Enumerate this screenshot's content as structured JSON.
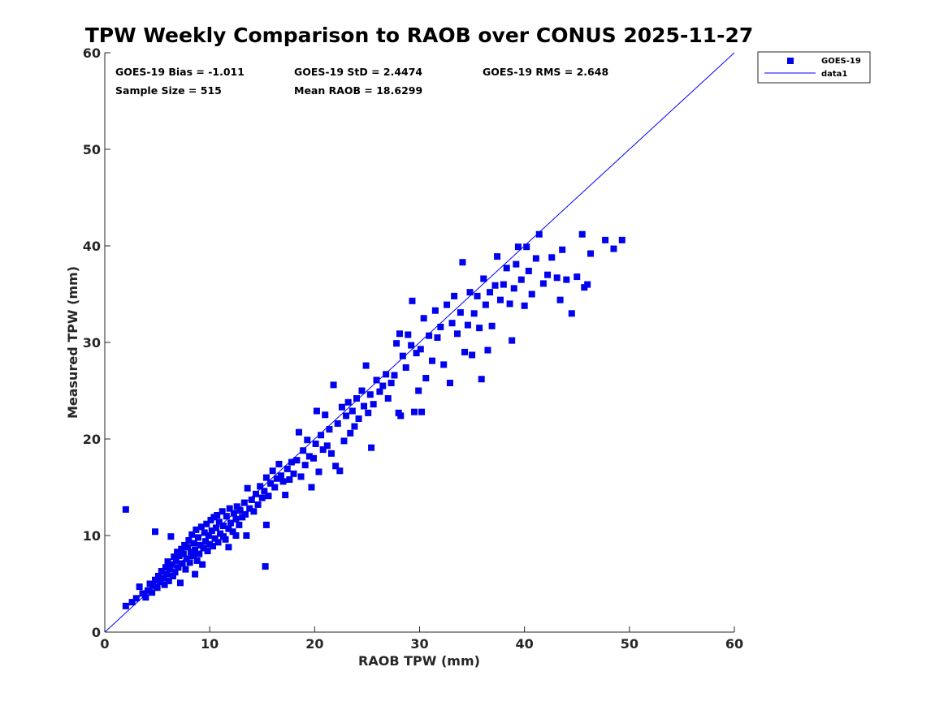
{
  "colors": {
    "series": "#0000ee",
    "line": "#0000ff",
    "axis": "#262626",
    "background": "#ffffff"
  },
  "chart_data": {
    "type": "scatter",
    "title": "TPW Weekly Comparison to RAOB over CONUS 2025-11-27",
    "xlabel": "RAOB TPW (mm)",
    "ylabel": "Measured TPW (mm)",
    "xlim": [
      0,
      60
    ],
    "ylim": [
      0,
      60
    ],
    "xticks": [
      0,
      10,
      20,
      30,
      40,
      50,
      60
    ],
    "yticks": [
      0,
      10,
      20,
      30,
      40,
      50,
      60
    ],
    "grid": false,
    "legend_position": "outside-top-right",
    "stats": {
      "bias": "GOES-19 Bias = -1.011",
      "std": "GOES-19 StD = 2.4474",
      "rms": "GOES-19 RMS = 2.648",
      "sample_size": "Sample Size = 515",
      "mean_raob": "Mean RAOB = 18.6299"
    },
    "series": [
      {
        "name": "GOES-19",
        "kind": "scatter",
        "points": [
          [
            2.0,
            12.7
          ],
          [
            4.8,
            10.4
          ],
          [
            6.3,
            9.9
          ],
          [
            15.3,
            6.8
          ],
          [
            8.6,
            6.0
          ],
          [
            11.3,
            9.9
          ],
          [
            12.5,
            10.0
          ],
          [
            13.5,
            10.0
          ],
          [
            15.4,
            11.1
          ],
          [
            11.8,
            8.8
          ],
          [
            2.0,
            2.7
          ],
          [
            2.6,
            3.1
          ],
          [
            3.0,
            3.5
          ],
          [
            3.3,
            4.7
          ],
          [
            3.6,
            4.0
          ],
          [
            3.9,
            3.6
          ],
          [
            4.1,
            4.3
          ],
          [
            4.3,
            5.0
          ],
          [
            4.5,
            4.1
          ],
          [
            4.6,
            4.8
          ],
          [
            4.8,
            5.4
          ],
          [
            5.0,
            4.6
          ],
          [
            5.1,
            5.8
          ],
          [
            5.3,
            5.2
          ],
          [
            5.4,
            6.3
          ],
          [
            5.6,
            5.6
          ],
          [
            5.7,
            4.9
          ],
          [
            5.8,
            6.7
          ],
          [
            5.9,
            6.0
          ],
          [
            6.0,
            7.3
          ],
          [
            6.1,
            5.3
          ],
          [
            6.2,
            6.5
          ],
          [
            6.4,
            7.0
          ],
          [
            6.5,
            5.8
          ],
          [
            6.6,
            7.8
          ],
          [
            6.7,
            6.2
          ],
          [
            6.8,
            7.4
          ],
          [
            6.9,
            8.3
          ],
          [
            7.0,
            6.7
          ],
          [
            7.1,
            7.9
          ],
          [
            7.2,
            5.1
          ],
          [
            7.3,
            8.6
          ],
          [
            7.4,
            7.1
          ],
          [
            7.5,
            8.1
          ],
          [
            7.6,
            9.0
          ],
          [
            7.7,
            6.5
          ],
          [
            7.8,
            7.6
          ],
          [
            7.9,
            8.8
          ],
          [
            8.0,
            9.5
          ],
          [
            8.1,
            7.2
          ],
          [
            8.2,
            8.3
          ],
          [
            8.3,
            10.1
          ],
          [
            8.4,
            7.9
          ],
          [
            8.5,
            9.2
          ],
          [
            8.6,
            8.5
          ],
          [
            8.7,
            10.6
          ],
          [
            8.8,
            7.4
          ],
          [
            8.9,
            9.8
          ],
          [
            9.0,
            8.1
          ],
          [
            9.1,
            9.0
          ],
          [
            9.2,
            10.9
          ],
          [
            9.3,
            7.0
          ],
          [
            9.4,
            8.7
          ],
          [
            9.5,
            10.3
          ],
          [
            9.6,
            9.4
          ],
          [
            9.7,
            11.2
          ],
          [
            9.8,
            8.4
          ],
          [
            9.9,
            10.0
          ],
          [
            10.0,
            9.1
          ],
          [
            10.1,
            11.6
          ],
          [
            10.2,
            10.5
          ],
          [
            10.3,
            8.9
          ],
          [
            10.4,
            11.9
          ],
          [
            10.5,
            9.7
          ],
          [
            10.6,
            10.8
          ],
          [
            10.7,
            12.1
          ],
          [
            10.8,
            9.3
          ],
          [
            10.9,
            11.4
          ],
          [
            11.0,
            10.2
          ],
          [
            11.2,
            12.5
          ],
          [
            11.3,
            11.0
          ],
          [
            11.5,
            9.6
          ],
          [
            11.6,
            12.0
          ],
          [
            11.8,
            10.7
          ],
          [
            11.9,
            12.8
          ],
          [
            12.0,
            11.3
          ],
          [
            12.2,
            10.4
          ],
          [
            12.3,
            12.3
          ],
          [
            12.5,
            11.7
          ],
          [
            12.6,
            13.0
          ],
          [
            12.8,
            11.1
          ],
          [
            12.9,
            12.6
          ],
          [
            13.1,
            11.9
          ],
          [
            13.3,
            13.4
          ],
          [
            13.4,
            12.2
          ],
          [
            13.6,
            14.9
          ],
          [
            13.8,
            12.8
          ],
          [
            14.0,
            13.7
          ],
          [
            14.2,
            12.5
          ],
          [
            14.4,
            14.3
          ],
          [
            14.6,
            13.2
          ],
          [
            14.8,
            15.1
          ],
          [
            15.0,
            13.9
          ],
          [
            15.2,
            14.6
          ],
          [
            15.4,
            16.0
          ],
          [
            15.6,
            14.1
          ],
          [
            15.8,
            15.4
          ],
          [
            16.0,
            16.7
          ],
          [
            16.2,
            15.0
          ],
          [
            16.4,
            15.9
          ],
          [
            16.6,
            17.4
          ],
          [
            16.8,
            16.2
          ],
          [
            17.0,
            15.6
          ],
          [
            17.2,
            14.2
          ],
          [
            17.4,
            16.9
          ],
          [
            17.6,
            15.8
          ],
          [
            17.8,
            17.6
          ],
          [
            18.0,
            16.4
          ],
          [
            18.3,
            17.8
          ],
          [
            18.5,
            20.7
          ],
          [
            18.7,
            16.1
          ],
          [
            18.9,
            18.8
          ],
          [
            19.1,
            17.3
          ],
          [
            19.3,
            19.9
          ],
          [
            19.5,
            18.2
          ],
          [
            19.7,
            15.0
          ],
          [
            19.9,
            18.0
          ],
          [
            20.1,
            19.5
          ],
          [
            20.2,
            22.9
          ],
          [
            20.4,
            16.6
          ],
          [
            20.6,
            20.4
          ],
          [
            20.8,
            18.9
          ],
          [
            21.0,
            22.5
          ],
          [
            21.2,
            19.3
          ],
          [
            21.4,
            21.0
          ],
          [
            21.6,
            18.5
          ],
          [
            21.8,
            25.6
          ],
          [
            22.0,
            17.2
          ],
          [
            22.2,
            21.6
          ],
          [
            22.4,
            16.7
          ],
          [
            22.6,
            23.3
          ],
          [
            22.8,
            19.8
          ],
          [
            23.0,
            22.4
          ],
          [
            23.2,
            23.8
          ],
          [
            23.4,
            20.6
          ],
          [
            23.6,
            22.9
          ],
          [
            23.8,
            21.3
          ],
          [
            24.0,
            24.2
          ],
          [
            24.2,
            22.1
          ],
          [
            24.5,
            25.0
          ],
          [
            24.7,
            23.4
          ],
          [
            24.9,
            27.6
          ],
          [
            25.1,
            22.7
          ],
          [
            25.3,
            24.6
          ],
          [
            25.4,
            19.1
          ],
          [
            25.6,
            23.6
          ],
          [
            25.9,
            26.1
          ],
          [
            26.2,
            24.9
          ],
          [
            26.5,
            25.5
          ],
          [
            26.8,
            26.7
          ],
          [
            27.0,
            24.2
          ],
          [
            27.3,
            25.8
          ],
          [
            27.6,
            26.6
          ],
          [
            27.8,
            29.9
          ],
          [
            28.0,
            22.7
          ],
          [
            28.1,
            30.9
          ],
          [
            28.2,
            22.4
          ],
          [
            28.4,
            28.6
          ],
          [
            28.7,
            27.4
          ],
          [
            28.9,
            30.8
          ],
          [
            29.2,
            29.7
          ],
          [
            29.3,
            34.3
          ],
          [
            29.5,
            22.8
          ],
          [
            29.7,
            28.9
          ],
          [
            29.9,
            25.0
          ],
          [
            30.1,
            29.3
          ],
          [
            30.2,
            22.8
          ],
          [
            30.4,
            32.5
          ],
          [
            30.6,
            26.3
          ],
          [
            30.9,
            30.7
          ],
          [
            31.2,
            28.1
          ],
          [
            31.5,
            33.3
          ],
          [
            31.7,
            30.5
          ],
          [
            32.0,
            31.6
          ],
          [
            32.3,
            27.7
          ],
          [
            32.6,
            33.9
          ],
          [
            32.9,
            25.8
          ],
          [
            33.1,
            32.0
          ],
          [
            33.3,
            34.8
          ],
          [
            33.6,
            30.9
          ],
          [
            33.9,
            33.1
          ],
          [
            34.1,
            38.3
          ],
          [
            34.3,
            29.0
          ],
          [
            34.6,
            31.8
          ],
          [
            34.8,
            35.2
          ],
          [
            35.0,
            28.7
          ],
          [
            35.2,
            33.0
          ],
          [
            35.5,
            34.8
          ],
          [
            35.7,
            31.5
          ],
          [
            35.9,
            26.2
          ],
          [
            36.1,
            36.6
          ],
          [
            36.3,
            33.9
          ],
          [
            36.5,
            29.2
          ],
          [
            36.7,
            35.2
          ],
          [
            36.9,
            31.7
          ],
          [
            37.2,
            35.9
          ],
          [
            37.4,
            38.9
          ],
          [
            37.7,
            34.4
          ],
          [
            38.0,
            36.0
          ],
          [
            38.3,
            37.7
          ],
          [
            38.6,
            34.0
          ],
          [
            38.8,
            30.2
          ],
          [
            39.0,
            35.6
          ],
          [
            39.2,
            38.1
          ],
          [
            39.4,
            39.9
          ],
          [
            39.7,
            36.5
          ],
          [
            40.0,
            33.8
          ],
          [
            40.2,
            39.9
          ],
          [
            40.4,
            37.4
          ],
          [
            40.7,
            35.0
          ],
          [
            41.1,
            38.7
          ],
          [
            41.4,
            41.2
          ],
          [
            41.8,
            36.1
          ],
          [
            42.2,
            37.0
          ],
          [
            42.6,
            38.8
          ],
          [
            43.1,
            36.7
          ],
          [
            43.4,
            34.4
          ],
          [
            43.6,
            39.6
          ],
          [
            44.0,
            36.5
          ],
          [
            44.5,
            33.0
          ],
          [
            45.0,
            36.8
          ],
          [
            45.5,
            41.2
          ],
          [
            45.7,
            35.7
          ],
          [
            46.0,
            36.0
          ],
          [
            46.3,
            39.2
          ],
          [
            47.7,
            40.6
          ],
          [
            48.5,
            39.7
          ],
          [
            49.3,
            40.6
          ]
        ]
      },
      {
        "name": "data1",
        "kind": "line",
        "points": [
          [
            0,
            0
          ],
          [
            60,
            60
          ]
        ]
      }
    ]
  }
}
